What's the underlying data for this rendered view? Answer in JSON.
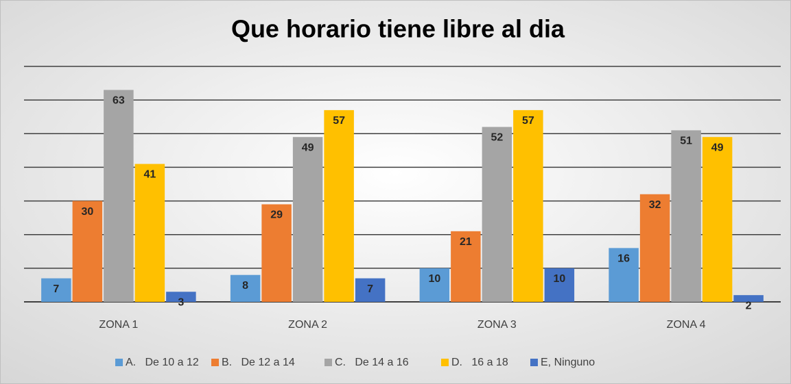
{
  "chart_data": {
    "type": "bar",
    "title": "Que horario tiene libre al dia",
    "categories": [
      "ZONA 1",
      "ZONA 2",
      "ZONA 3",
      "ZONA 4"
    ],
    "series": [
      {
        "name": "A.   De 10 a 12",
        "color": "#5b9bd5",
        "values": [
          7,
          8,
          10,
          16
        ]
      },
      {
        "name": "B.   De 12 a 14",
        "color": "#ed7d31",
        "values": [
          30,
          29,
          21,
          32
        ]
      },
      {
        "name": "C.   De 14 a 16",
        "color": "#a5a5a5",
        "values": [
          63,
          49,
          52,
          51
        ]
      },
      {
        "name": "D.   16 a 18",
        "color": "#ffc000",
        "values": [
          41,
          57,
          57,
          49
        ]
      },
      {
        "name": "E, Ninguno",
        "color": "#4472c4",
        "values": [
          3,
          7,
          10,
          2
        ]
      }
    ],
    "ylim": [
      0,
      70
    ],
    "yticks": [
      0,
      10,
      20,
      30,
      40,
      50,
      60,
      70
    ],
    "grid": true,
    "legend": "bottom"
  }
}
